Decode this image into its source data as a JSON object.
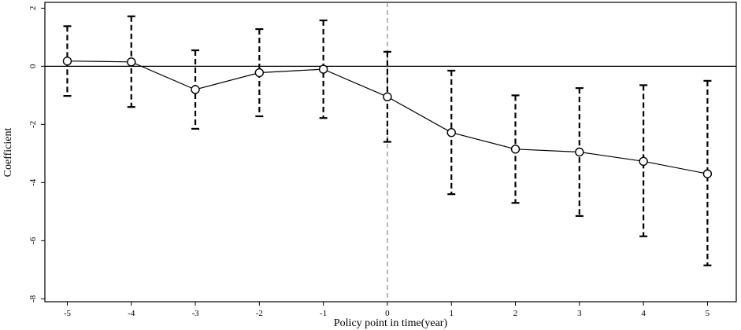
{
  "chart_data": {
    "type": "scatter",
    "title": "",
    "xlabel": "Policy point in time(year)",
    "ylabel": "Coefficient",
    "x": [
      -5,
      -4,
      -3,
      -2,
      -1,
      0,
      1,
      2,
      3,
      4,
      5
    ],
    "xticks": [
      "-5",
      "-4",
      "-3",
      "-2",
      "-1",
      "0",
      "1",
      "2",
      "3",
      "4",
      "5"
    ],
    "yticks": [
      "2",
      "0",
      "-2",
      "-4",
      "-6",
      "-8"
    ],
    "xlim": [
      -5.35,
      5.45
    ],
    "ylim": [
      -8.1,
      2.2
    ],
    "grid": false,
    "legend": "none",
    "reference_lines": {
      "horizontal_y": 0,
      "vertical_x": 0
    },
    "series": [
      {
        "values": [
          0.18,
          0.15,
          -0.8,
          -0.22,
          -0.1,
          -1.05,
          -2.28,
          -2.85,
          -2.95,
          -3.27,
          -3.7
        ],
        "ci_upper": [
          1.38,
          1.72,
          0.55,
          1.28,
          1.58,
          0.5,
          -0.15,
          -1.0,
          -0.75,
          -0.65,
          -0.5
        ],
        "ci_lower": [
          -1.02,
          -1.4,
          -2.15,
          -1.72,
          -1.78,
          -2.6,
          -4.4,
          -4.7,
          -5.15,
          -5.85,
          -6.85
        ]
      }
    ],
    "colors": {
      "line": "#000000",
      "marker": "#000000",
      "reference_vertical": "#888888"
    }
  }
}
